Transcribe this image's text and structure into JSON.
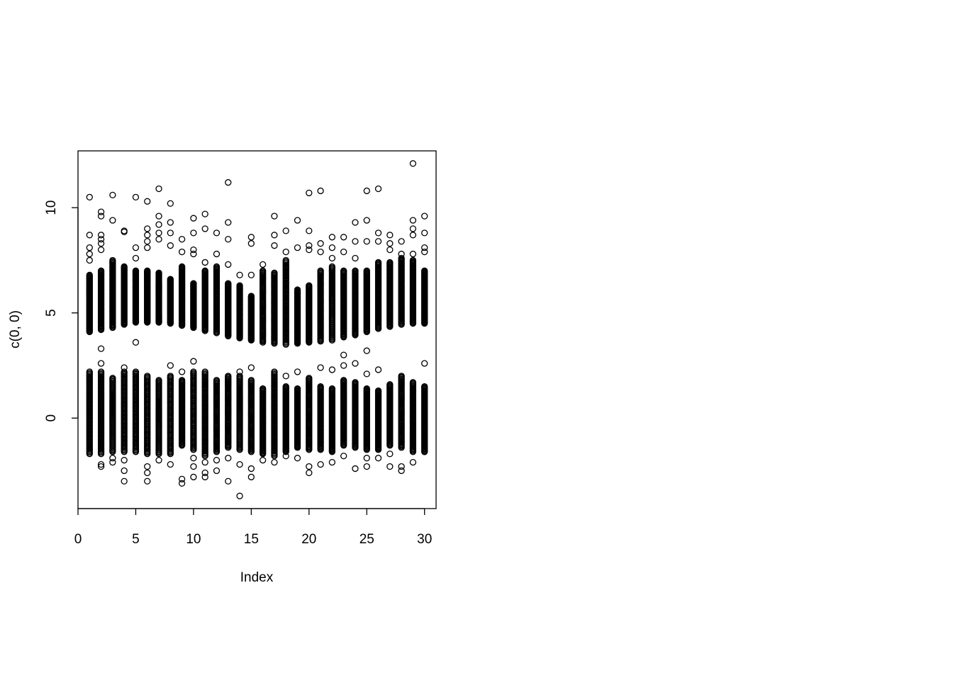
{
  "chart_data": {
    "type": "scatter",
    "title": "",
    "xlabel": "Index",
    "ylabel": "c(0, 0)",
    "xlim": [
      0,
      31
    ],
    "ylim": [
      -4.3,
      12.7
    ],
    "x_ticks": [
      0,
      5,
      10,
      15,
      20,
      25,
      30
    ],
    "y_ticks": [
      0,
      5,
      10
    ],
    "x_tick_labels": [
      "0",
      "5",
      "10",
      "15",
      "20",
      "25",
      "30"
    ],
    "y_tick_labels": [
      "0",
      "5",
      "10"
    ],
    "grid": false,
    "legend": "none",
    "marker": "open-circle",
    "marker_color": "#000000",
    "x": [
      1,
      2,
      3,
      4,
      5,
      6,
      7,
      8,
      9,
      10,
      11,
      12,
      13,
      14,
      15,
      16,
      17,
      18,
      19,
      20,
      21,
      22,
      23,
      24,
      25,
      26,
      27,
      28,
      29,
      30
    ],
    "upper_band": {
      "low": [
        4.1,
        4.2,
        4.3,
        4.45,
        4.55,
        4.55,
        4.55,
        4.5,
        4.4,
        4.3,
        4.15,
        4.05,
        3.9,
        3.8,
        3.7,
        3.6,
        3.55,
        3.5,
        3.55,
        3.6,
        3.65,
        3.7,
        3.85,
        3.95,
        4.1,
        4.25,
        4.35,
        4.45,
        4.5,
        4.5
      ],
      "high": [
        6.8,
        7.0,
        7.5,
        7.2,
        7.0,
        7.0,
        6.9,
        6.6,
        7.2,
        6.4,
        7.0,
        7.2,
        6.4,
        6.3,
        5.8,
        7.0,
        6.9,
        7.5,
        6.1,
        6.3,
        7.0,
        7.2,
        7.0,
        7.0,
        7.0,
        7.4,
        7.4,
        7.6,
        7.5,
        7.0
      ]
    },
    "lower_band": {
      "low": [
        -1.7,
        -1.7,
        -1.6,
        -1.6,
        -1.6,
        -1.7,
        -1.7,
        -1.7,
        -1.3,
        -1.5,
        -1.8,
        -1.6,
        -1.4,
        -1.5,
        -1.6,
        -1.7,
        -1.8,
        -1.6,
        -1.4,
        -1.5,
        -1.5,
        -1.6,
        -1.3,
        -1.4,
        -1.5,
        -1.5,
        -1.3,
        -1.4,
        -1.6,
        -1.6
      ],
      "high": [
        2.2,
        2.2,
        1.9,
        2.2,
        2.2,
        2.0,
        1.8,
        2.0,
        1.8,
        2.2,
        2.2,
        1.8,
        2.0,
        2.0,
        1.8,
        1.4,
        2.2,
        1.5,
        1.4,
        1.9,
        1.5,
        1.4,
        1.8,
        1.7,
        1.4,
        1.3,
        1.6,
        2.0,
        1.7,
        1.5
      ]
    },
    "outliers": [
      [
        1,
        10.5
      ],
      [
        1,
        8.7
      ],
      [
        1,
        8.1
      ],
      [
        1,
        7.8
      ],
      [
        1,
        7.5
      ],
      [
        2,
        9.8
      ],
      [
        2,
        9.6
      ],
      [
        2,
        8.7
      ],
      [
        2,
        8.5
      ],
      [
        2,
        8.3
      ],
      [
        2,
        8.0
      ],
      [
        2,
        3.3
      ],
      [
        2,
        2.6
      ],
      [
        2,
        -2.2
      ],
      [
        2,
        -2.3
      ],
      [
        3,
        10.6
      ],
      [
        3,
        9.4
      ],
      [
        3,
        -2.1
      ],
      [
        3,
        -1.9
      ],
      [
        4,
        8.9
      ],
      [
        4,
        8.85
      ],
      [
        4,
        2.4
      ],
      [
        4,
        -2.0
      ],
      [
        4,
        -2.5
      ],
      [
        4,
        -3.0
      ],
      [
        5,
        10.5
      ],
      [
        5,
        8.1
      ],
      [
        5,
        7.6
      ],
      [
        5,
        3.6
      ],
      [
        6,
        10.3
      ],
      [
        6,
        9.0
      ],
      [
        6,
        8.7
      ],
      [
        6,
        8.4
      ],
      [
        6,
        8.1
      ],
      [
        6,
        -2.3
      ],
      [
        6,
        -2.6
      ],
      [
        6,
        -3.0
      ],
      [
        7,
        10.9
      ],
      [
        7,
        9.6
      ],
      [
        7,
        9.2
      ],
      [
        7,
        8.8
      ],
      [
        7,
        8.5
      ],
      [
        7,
        -2.0
      ],
      [
        8,
        10.2
      ],
      [
        8,
        9.3
      ],
      [
        8,
        8.8
      ],
      [
        8,
        8.2
      ],
      [
        8,
        2.5
      ],
      [
        8,
        -2.2
      ],
      [
        9,
        8.5
      ],
      [
        9,
        7.9
      ],
      [
        9,
        2.2
      ],
      [
        9,
        -2.9
      ],
      [
        9,
        -3.1
      ],
      [
        10,
        9.5
      ],
      [
        10,
        8.8
      ],
      [
        10,
        8.0
      ],
      [
        10,
        7.8
      ],
      [
        10,
        2.7
      ],
      [
        10,
        -1.9
      ],
      [
        10,
        -2.3
      ],
      [
        10,
        -2.8
      ],
      [
        11,
        9.7
      ],
      [
        11,
        9.0
      ],
      [
        11,
        7.4
      ],
      [
        11,
        -2.1
      ],
      [
        11,
        -2.6
      ],
      [
        11,
        -2.8
      ],
      [
        12,
        8.8
      ],
      [
        12,
        7.8
      ],
      [
        12,
        -2.0
      ],
      [
        12,
        -2.5
      ],
      [
        13,
        11.2
      ],
      [
        13,
        9.3
      ],
      [
        13,
        8.5
      ],
      [
        13,
        7.3
      ],
      [
        13,
        -1.9
      ],
      [
        13,
        -3.0
      ],
      [
        14,
        6.8
      ],
      [
        14,
        2.2
      ],
      [
        14,
        -2.2
      ],
      [
        14,
        -3.7
      ],
      [
        15,
        8.6
      ],
      [
        15,
        8.3
      ],
      [
        15,
        6.8
      ],
      [
        15,
        2.4
      ],
      [
        15,
        -2.4
      ],
      [
        15,
        -2.8
      ],
      [
        16,
        7.3
      ],
      [
        16,
        -2.0
      ],
      [
        17,
        9.6
      ],
      [
        17,
        8.7
      ],
      [
        17,
        8.2
      ],
      [
        17,
        -2.1
      ],
      [
        18,
        8.9
      ],
      [
        18,
        7.9
      ],
      [
        18,
        2.0
      ],
      [
        18,
        -1.8
      ],
      [
        19,
        9.4
      ],
      [
        19,
        8.1
      ],
      [
        19,
        2.2
      ],
      [
        19,
        -1.9
      ],
      [
        20,
        10.7
      ],
      [
        20,
        8.9
      ],
      [
        20,
        8.2
      ],
      [
        20,
        8.0
      ],
      [
        20,
        -2.3
      ],
      [
        20,
        -2.6
      ],
      [
        21,
        10.8
      ],
      [
        21,
        8.3
      ],
      [
        21,
        7.9
      ],
      [
        21,
        2.4
      ],
      [
        21,
        -2.2
      ],
      [
        22,
        8.6
      ],
      [
        22,
        8.1
      ],
      [
        22,
        7.6
      ],
      [
        22,
        2.3
      ],
      [
        22,
        -2.1
      ],
      [
        23,
        8.6
      ],
      [
        23,
        7.9
      ],
      [
        23,
        3.0
      ],
      [
        23,
        2.5
      ],
      [
        23,
        -1.8
      ],
      [
        24,
        9.3
      ],
      [
        24,
        8.4
      ],
      [
        24,
        7.6
      ],
      [
        24,
        2.6
      ],
      [
        24,
        -2.4
      ],
      [
        25,
        10.8
      ],
      [
        25,
        9.4
      ],
      [
        25,
        8.4
      ],
      [
        25,
        3.2
      ],
      [
        25,
        2.1
      ],
      [
        25,
        -1.9
      ],
      [
        25,
        -2.3
      ],
      [
        26,
        10.9
      ],
      [
        26,
        8.8
      ],
      [
        26,
        8.4
      ],
      [
        26,
        2.3
      ],
      [
        26,
        -1.9
      ],
      [
        27,
        8.7
      ],
      [
        27,
        8.3
      ],
      [
        27,
        8.0
      ],
      [
        27,
        -1.7
      ],
      [
        27,
        -2.3
      ],
      [
        28,
        8.4
      ],
      [
        28,
        7.8
      ],
      [
        28,
        -2.3
      ],
      [
        28,
        -2.5
      ],
      [
        29,
        12.1
      ],
      [
        29,
        9.4
      ],
      [
        29,
        9.0
      ],
      [
        29,
        8.7
      ],
      [
        29,
        7.8
      ],
      [
        29,
        -2.1
      ],
      [
        30,
        9.6
      ],
      [
        30,
        8.8
      ],
      [
        30,
        8.1
      ],
      [
        30,
        7.9
      ],
      [
        30,
        2.6
      ],
      [
        30,
        -1.6
      ]
    ],
    "points_per_band": 70
  }
}
